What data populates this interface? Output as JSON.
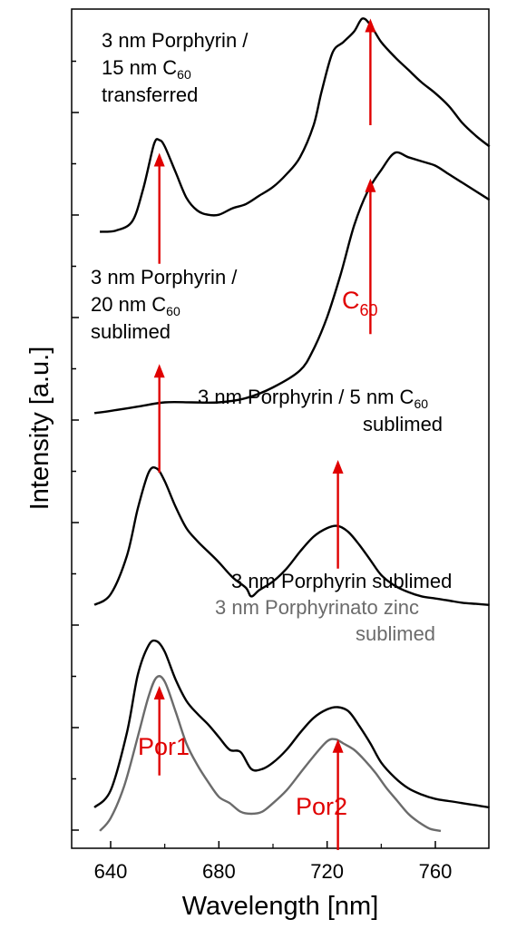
{
  "chart_data": {
    "type": "line",
    "xlabel": "Wavelength [nm]",
    "ylabel": "Intensity [a.u.]",
    "xlim": [
      632,
      782
    ],
    "x_ticks": [
      640,
      680,
      720,
      760
    ],
    "y_tick_labels": "none",
    "colors": {
      "black": "#000000",
      "gray": "#6b6b6b",
      "red": "#e00000"
    },
    "series": [
      {
        "name": "3 nm Porphyrin / 15 nm C60 transferred",
        "label_lines": [
          "3 nm Porphyrin /",
          "15 nm C",
          "transferred"
        ],
        "label_sub": "60",
        "color": "#000000",
        "offset": 270,
        "x": [
          636,
          642,
          648,
          652,
          656,
          658,
          660,
          664,
          668,
          672,
          676,
          680,
          685,
          690,
          695,
          700,
          705,
          710,
          715,
          718,
          722,
          726,
          730,
          733,
          736,
          740,
          745,
          750,
          755,
          760,
          765,
          770,
          775,
          780
        ],
        "y": [
          0.0,
          0.6,
          5.0,
          20.0,
          41.0,
          43.0,
          40.0,
          28.0,
          16.0,
          10.0,
          8.0,
          8.0,
          11.0,
          13.0,
          17.0,
          21.0,
          27.0,
          35.0,
          50.0,
          66.0,
          84.0,
          89.0,
          94.0,
          100.0,
          97.0,
          89.0,
          82.0,
          76.0,
          70.0,
          65.0,
          59.0,
          51.0,
          45.0,
          40.0
        ]
      },
      {
        "name": "3 nm Porphyrin / 20 nm C60 sublimed",
        "label_lines": [
          "3 nm Porphyrin /",
          "20 nm C",
          "sublimed"
        ],
        "label_sub": "60",
        "color": "#000000",
        "offset": 185,
        "x": [
          634,
          640,
          650,
          660,
          670,
          680,
          690,
          700,
          710,
          715,
          720,
          725,
          730,
          735,
          740,
          745,
          750,
          755,
          760,
          765,
          770,
          775,
          780
        ],
        "y": [
          0.0,
          1.0,
          3.0,
          5.0,
          5.0,
          5.0,
          7.0,
          12.0,
          20.0,
          30.0,
          45.0,
          65.0,
          88.0,
          104.0,
          114.0,
          122.0,
          120.0,
          118.0,
          116.0,
          112.0,
          108.0,
          104.0,
          100.0
        ]
      },
      {
        "name": "3 nm Porphyrin / 5 nm C60 sublimed",
        "label_lines": [
          "3 nm Porphyrin / 5 nm C",
          "sublimed"
        ],
        "label_sub": "60",
        "color": "#000000",
        "offset": 95,
        "x": [
          634,
          640,
          646,
          650,
          654,
          657,
          660,
          664,
          668,
          672,
          676,
          680,
          685,
          690,
          692,
          695,
          700,
          705,
          710,
          715,
          720,
          724,
          728,
          732,
          736,
          740,
          745,
          750,
          755,
          760,
          765,
          770,
          775,
          780
        ],
        "y": [
          0.0,
          5.0,
          23.0,
          45.0,
          62.0,
          64.0,
          58.0,
          46.0,
          36.0,
          30.0,
          25.0,
          20.0,
          13.0,
          8.0,
          4.0,
          7.0,
          11.0,
          17.0,
          25.0,
          32.0,
          36.0,
          37.0,
          34.0,
          28.0,
          21.0,
          14.0,
          9.0,
          6.0,
          4.0,
          3.0,
          2.0,
          1.0,
          0.5,
          0.0
        ]
      },
      {
        "name": "3 nm Porphyrin sublimed",
        "label_lines": [
          "3 nm Porphyrin sublimed"
        ],
        "color": "#000000",
        "offset": 0,
        "x": [
          634,
          640,
          646,
          650,
          654,
          657,
          660,
          664,
          668,
          672,
          676,
          680,
          684,
          688,
          692,
          696,
          700,
          705,
          710,
          715,
          720,
          724,
          728,
          732,
          736,
          740,
          745,
          750,
          755,
          760,
          765,
          770,
          775,
          780
        ],
        "y": [
          0.0,
          8.0,
          35.0,
          62.0,
          76.0,
          78.0,
          73.0,
          60.0,
          50.0,
          44.0,
          39.0,
          33.0,
          27.0,
          26.0,
          18.0,
          18.0,
          21.0,
          27.0,
          35.0,
          42.0,
          46.0,
          47.0,
          45.0,
          38.0,
          30.0,
          21.0,
          14.0,
          9.0,
          6.0,
          4.0,
          3.0,
          2.0,
          1.0,
          0.0
        ]
      },
      {
        "name": "3 nm Porphyrinato zinc sublimed",
        "label_lines": [
          "3 nm Porphyrinato zinc",
          "sublimed"
        ],
        "color": "#6b6b6b",
        "offset": 0,
        "x": [
          636,
          640,
          645,
          650,
          654,
          657,
          660,
          664,
          668,
          672,
          676,
          680,
          684,
          688,
          692,
          696,
          700,
          705,
          710,
          715,
          720,
          723,
          726,
          730,
          734,
          738,
          742,
          746,
          750,
          754,
          758,
          762
        ],
        "y": [
          -11.0,
          -5.0,
          10.0,
          33.0,
          52.0,
          61.0,
          59.0,
          45.0,
          30.0,
          20.0,
          12.0,
          5.0,
          2.0,
          -2.0,
          -3.0,
          -2.0,
          2.0,
          8.0,
          16.0,
          24.0,
          31.0,
          32.0,
          30.0,
          27.0,
          22.0,
          16.0,
          9.0,
          3.0,
          -3.0,
          -7.0,
          -10.0,
          -11.0
        ]
      }
    ],
    "annotations": [
      {
        "label": "C",
        "sub": "60",
        "x": 736,
        "y_from": 320,
        "y_to": 370
      },
      {
        "label": "",
        "x": 736,
        "y_from": 222,
        "y_to": 295
      },
      {
        "label": "",
        "x": 658,
        "y_from": 255,
        "y_to": 307
      },
      {
        "label": "",
        "x": 658,
        "y_from": 157,
        "y_to": 208
      },
      {
        "label": "",
        "x": 724,
        "y_from": 112,
        "y_to": 163
      },
      {
        "label": "Por1",
        "x": 658,
        "y_from": 15,
        "y_to": 57
      },
      {
        "label": "Por2",
        "x": 724,
        "y_from": -20,
        "y_to": 32
      }
    ]
  }
}
